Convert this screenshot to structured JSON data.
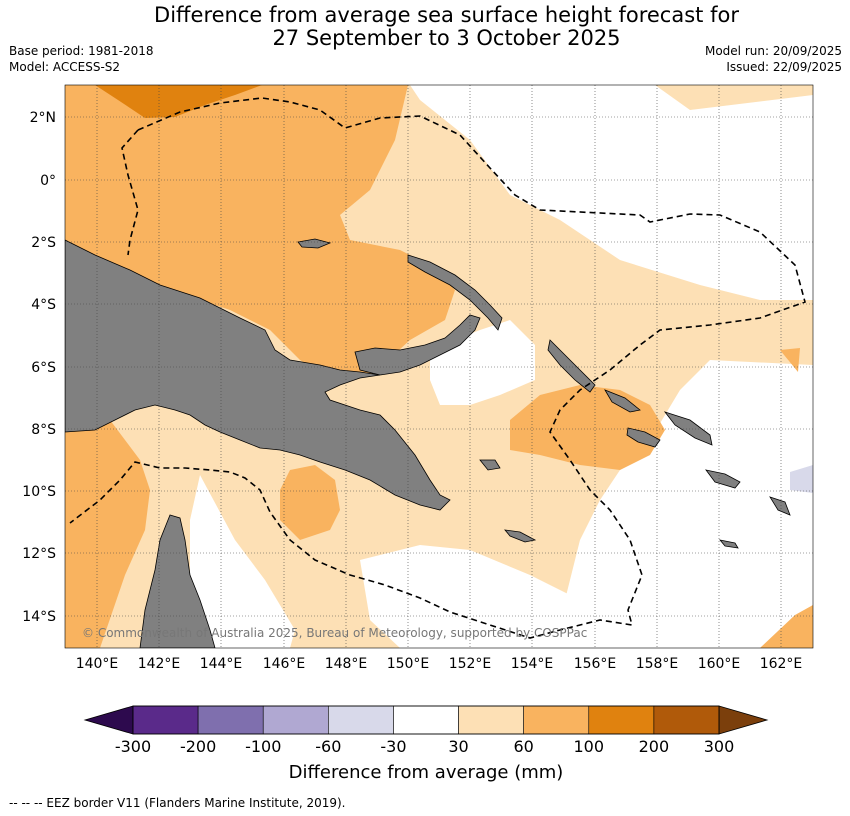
{
  "title_line1": "Difference from average sea surface height forecast for",
  "title_line2": "27 September to 3 October 2025",
  "base_period": "Base period: 1981-2018",
  "model": "Model: ACCESS-S2",
  "model_run": "Model run: 20/09/2025",
  "issued": "Issued: 22/09/2025",
  "lat_labels": [
    "2°N",
    "0°",
    "2°S",
    "4°S",
    "6°S",
    "8°S",
    "10°S",
    "12°S",
    "14°S"
  ],
  "lon_labels": [
    "140°E",
    "142°E",
    "144°E",
    "146°E",
    "148°E",
    "150°E",
    "152°E",
    "154°E",
    "156°E",
    "158°E",
    "160°E",
    "162°E"
  ],
  "copyright": "© Commonwealth of Australia 2025, Bureau of Meteorology, supported by COSPPac",
  "colorbar": {
    "ticks": [
      "-300",
      "-200",
      "-100",
      "-60",
      "-30",
      "30",
      "60",
      "100",
      "200",
      "300"
    ],
    "label": "Difference from average (mm)",
    "colors": [
      "#2d0a4e",
      "#5a2a8a",
      "#7f6fae",
      "#b0a8d2",
      "#d8d9ea",
      "#ffffff",
      "#fde0b5",
      "#f9b35f",
      "#e0820f",
      "#b05a0a",
      "#7b3f0c"
    ]
  },
  "footer": "--  --  -- EEZ border V11 (Flanders Marine Institute, 2019)."
}
